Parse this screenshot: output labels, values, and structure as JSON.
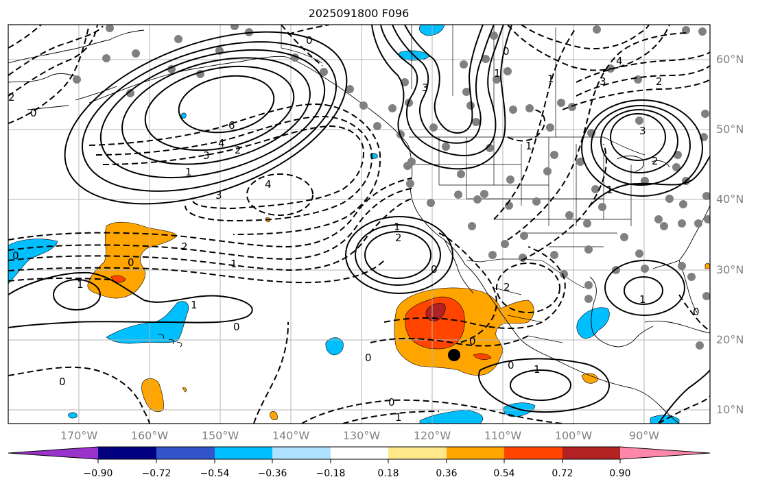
{
  "title": "2025091800 F096",
  "lat_labels": [
    "60°N",
    "50°N",
    "40°N",
    "30°N",
    "20°N",
    "10°N"
  ],
  "lon_labels": [
    "170°W",
    "160°W",
    "150°W",
    "140°W",
    "130°W",
    "120°W",
    "110°W",
    "100°W",
    "90°W"
  ],
  "colorbar": {
    "colors": [
      "#9933cc",
      "#000080",
      "#3355cc",
      "#00bfff",
      "#aee2ff",
      "#ffffff",
      "#ffe78a",
      "#ffa500",
      "#ff4500",
      "#b22222",
      "#ff88aa"
    ],
    "tick_labels": [
      "−0.90",
      "−0.72",
      "−0.54",
      "−0.36",
      "−0.18",
      "0.18",
      "0.36",
      "0.54",
      "0.72",
      "0.90"
    ]
  },
  "contour_labels": {
    "pacific_high_center": "6",
    "pacific_high_ring": "4",
    "pacific_high_inner": "3",
    "pacific_high_outer": "1",
    "pacific_low_inner": "2",
    "pacific_low_mid": "3",
    "pacific_low_small": "4",
    "nw_corner": "2",
    "nw_corner_low": "0",
    "north_canada": "3",
    "north_zero": "0",
    "great_lakes_center": "3",
    "great_lakes_inner": "2",
    "great_lakes_ring": "1",
    "great_lakes_upper": "3",
    "great_lakes_top": "4",
    "great_lakes_right": "2",
    "baja_high_center": "2",
    "baja_high_outer": "1",
    "baja_zero": "0",
    "subtropic_minus2": "2",
    "subtropic_zero": "0",
    "subtropic_minus1": "1",
    "hawaii_high": "1",
    "hawaii_ring": "1",
    "hawaii_zero": "0",
    "tropic_zero_west": "0",
    "tropic_zero_mid": "0",
    "tropic_zero_right": "0",
    "tropic_minus1": "1",
    "mexico_zero": "0",
    "mexico_minus2": "2",
    "gulf_high": "1",
    "gulf_zero": "0",
    "central_am_high": "1",
    "central_am_zero": "0",
    "west_edge_zero": "0",
    "plains_minus1": "1",
    "plains_plus1": "1",
    "rockies_minus1": "1",
    "bc_zero": "0"
  }
}
